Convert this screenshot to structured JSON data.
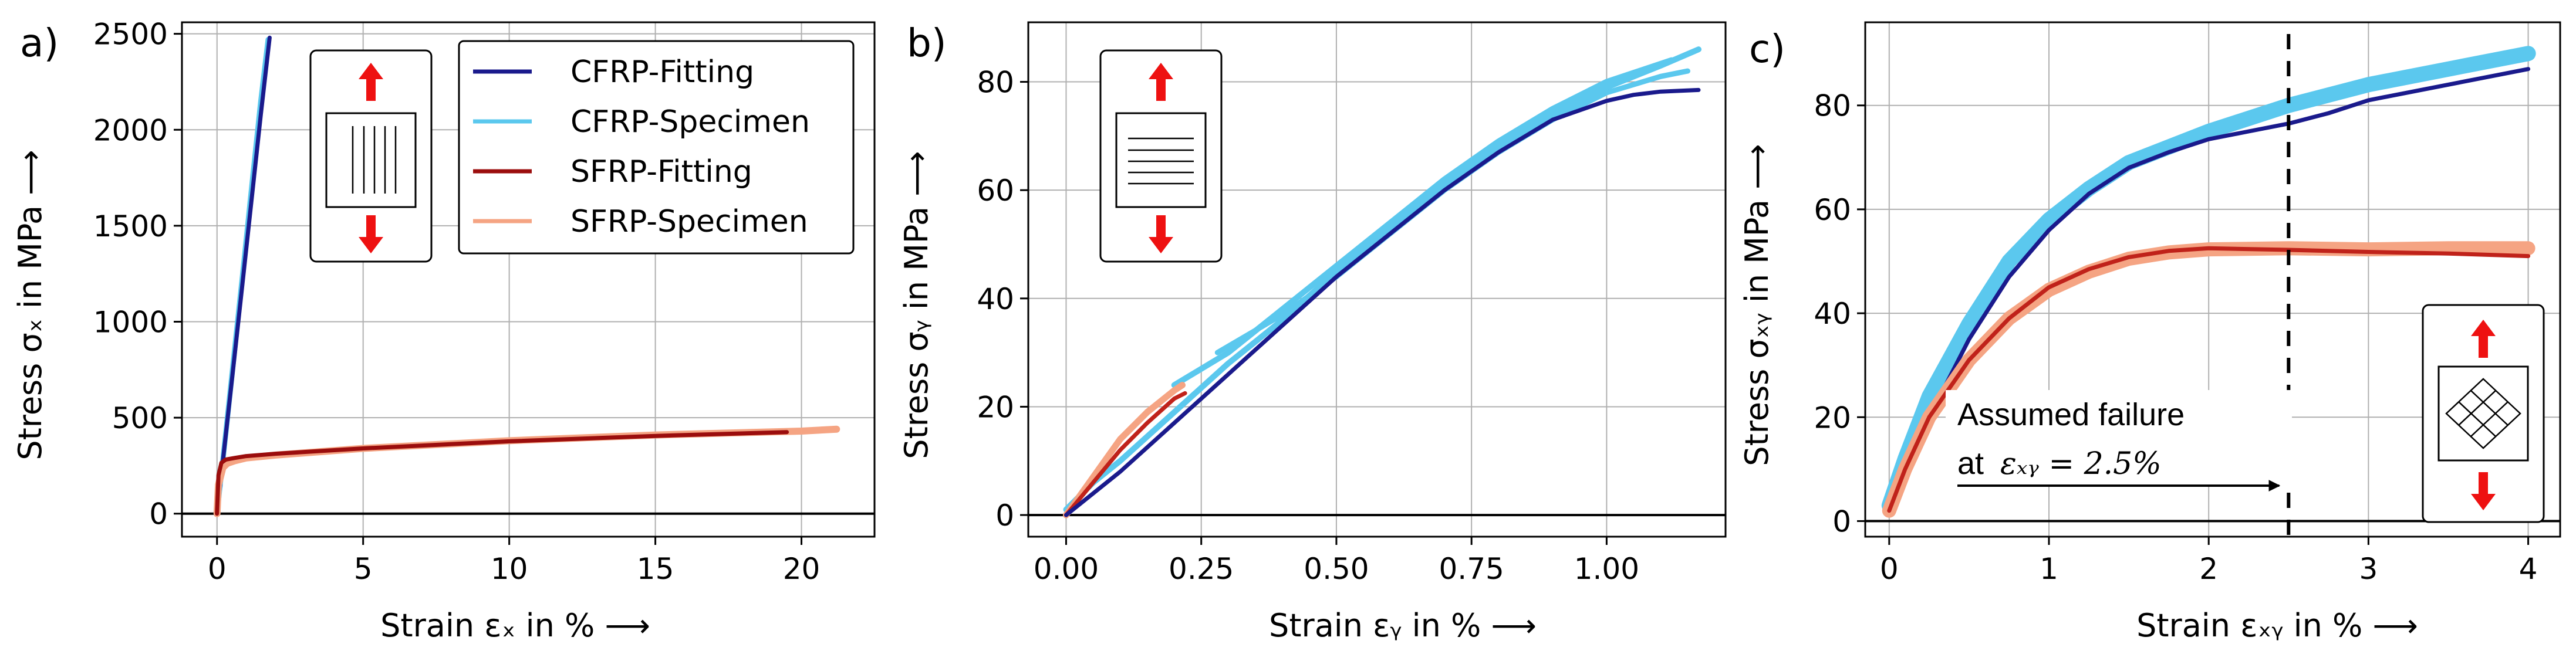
{
  "chart_data": [
    {
      "type": "line",
      "panel_label": "a)",
      "xlabel": "Strain εₓ in % ⟶",
      "ylabel": "Stress σₓ in MPa ⟶",
      "xlim": [
        -1.2,
        22.5
      ],
      "ylim": [
        -120,
        2560
      ],
      "xticks": [
        0,
        5,
        10,
        15,
        20
      ],
      "yticks": [
        0,
        500,
        1000,
        1500,
        2000,
        2500
      ],
      "grid": true,
      "legend": {
        "placement": "top-right",
        "entries": [
          "CFRP-Fitting",
          "CFRP-Specimen",
          "SFRP-Fitting",
          "SFRP-Specimen"
        ]
      },
      "inset_icon": "uniaxial-tension-fibers-vertical-icon",
      "series": [
        {
          "name": "CFRP-Specimen",
          "color": "#5bc8ee",
          "width": 9,
          "x": [
            0,
            0.3,
            0.6,
            0.9,
            1.2,
            1.5,
            1.75
          ],
          "y": [
            0,
            420,
            850,
            1280,
            1720,
            2150,
            2470
          ]
        },
        {
          "name": "CFRP-Fitting",
          "color": "#1a1a8c",
          "width": 7,
          "x": [
            0,
            0.3,
            0.6,
            0.9,
            1.2,
            1.5,
            1.8
          ],
          "y": [
            0,
            410,
            820,
            1240,
            1660,
            2080,
            2480
          ]
        },
        {
          "name": "SFRP-Specimen",
          "color": "#f5a483",
          "width": 12,
          "x": [
            0,
            0.05,
            0.2,
            0.35,
            0.6,
            1,
            2,
            5,
            10,
            15,
            20,
            21.2
          ],
          "y": [
            0,
            150,
            240,
            262,
            275,
            290,
            305,
            340,
            380,
            410,
            430,
            440
          ]
        },
        {
          "name": "SFRP-Fitting",
          "color": "#9b0d0d",
          "width": 7,
          "x": [
            0,
            0.05,
            0.15,
            0.3,
            0.6,
            1,
            2,
            5,
            10,
            15,
            19.5
          ],
          "y": [
            0,
            200,
            265,
            282,
            290,
            300,
            312,
            340,
            377,
            405,
            425
          ]
        }
      ]
    },
    {
      "type": "line",
      "panel_label": "b)",
      "xlabel": "Strain εᵧ in % ⟶",
      "ylabel": "Stress σᵧ in MPa ⟶",
      "xlim": [
        -0.07,
        1.22
      ],
      "ylim": [
        -4,
        91
      ],
      "xticks": [
        0.0,
        0.25,
        0.5,
        0.75,
        1.0
      ],
      "yticks": [
        0,
        20,
        40,
        60,
        80
      ],
      "grid": true,
      "inset_icon": "uniaxial-tension-fibers-horizontal-icon",
      "series": [
        {
          "name": "CFRP-Specimen",
          "color": "#5bc8ee",
          "width": 10,
          "x": [
            0,
            0.05,
            0.1,
            0.2,
            0.3,
            0.4,
            0.5,
            0.6,
            0.7,
            0.8,
            0.9,
            1.0,
            1.1,
            1.17
          ],
          "y": [
            1,
            6,
            10,
            19,
            28,
            36,
            45,
            53,
            61,
            68,
            74,
            79,
            83,
            86
          ]
        },
        {
          "name": "CFRP-Specimen",
          "color": "#5bc8ee",
          "width": 10,
          "x": [
            0.2,
            0.3,
            0.4,
            0.5,
            0.6,
            0.7,
            0.8,
            0.9,
            1.0,
            1.12
          ],
          "y": [
            24,
            30,
            38,
            46,
            54,
            62,
            69,
            75,
            80,
            84
          ]
        },
        {
          "name": "CFRP-Specimen",
          "color": "#5bc8ee",
          "width": 9,
          "x": [
            0.28,
            0.4,
            0.5,
            0.6,
            0.7,
            0.8,
            0.9,
            1.0,
            1.1,
            1.15
          ],
          "y": [
            30,
            37,
            44,
            52,
            60,
            67,
            73,
            78,
            81,
            82
          ]
        },
        {
          "name": "SFRP-Specimen",
          "color": "#f5a483",
          "width": 11,
          "x": [
            0,
            0.05,
            0.1,
            0.15,
            0.2,
            0.215
          ],
          "y": [
            0,
            7,
            14,
            19,
            23,
            24
          ]
        },
        {
          "name": "SFRP-Fitting",
          "color": "#c0221a",
          "width": 7,
          "x": [
            0,
            0.05,
            0.1,
            0.15,
            0.2,
            0.22
          ],
          "y": [
            0,
            6,
            12,
            17,
            21.5,
            22.5
          ]
        },
        {
          "name": "CFRP-Fitting",
          "color": "#1a1a8c",
          "width": 7,
          "x": [
            0,
            0.1,
            0.2,
            0.3,
            0.4,
            0.5,
            0.6,
            0.7,
            0.8,
            0.9,
            1.0,
            1.05,
            1.1,
            1.17
          ],
          "y": [
            0,
            8,
            17,
            26,
            35,
            44,
            52,
            60,
            67,
            73,
            76.5,
            77.6,
            78.2,
            78.5
          ]
        }
      ]
    },
    {
      "type": "line",
      "panel_label": "c)",
      "xlabel": "Strain εₓᵧ in % ⟶",
      "ylabel": "Stress σₓᵧ in MPa ⟶",
      "xlim": [
        -0.15,
        4.2
      ],
      "ylim": [
        -3,
        96
      ],
      "xticks": [
        0,
        1,
        2,
        3,
        4
      ],
      "yticks": [
        0,
        20,
        40,
        60,
        80
      ],
      "grid": true,
      "inset_icon": "shear-loading-fibers-crossed-icon",
      "annotation": {
        "text": "Assumed failure",
        "math_prefix": "at ",
        "math": "εₓᵧ = 2.5%",
        "failure_strain": 2.5
      },
      "series": [
        {
          "name": "CFRP-Specimen",
          "color": "#5bc8ee",
          "width": 26,
          "x": [
            0,
            0.1,
            0.25,
            0.5,
            0.75,
            1.0,
            1.25,
            1.5,
            1.75,
            2.0,
            2.5,
            3.0,
            3.5,
            4.0
          ],
          "y": [
            3,
            12,
            24,
            38,
            50,
            58,
            64,
            69,
            72,
            75,
            80,
            84,
            87,
            90
          ]
        },
        {
          "name": "CFRP-Fitting",
          "color": "#1a1a8c",
          "width": 7,
          "x": [
            0,
            0.1,
            0.25,
            0.5,
            0.75,
            1.0,
            1.25,
            1.5,
            1.75,
            2.0,
            2.25,
            2.5,
            2.75,
            3.0,
            3.5,
            4.0
          ],
          "y": [
            2,
            9,
            20,
            35,
            47,
            56,
            63,
            68,
            71,
            73.5,
            75,
            76.5,
            78.5,
            81,
            84,
            87
          ]
        },
        {
          "name": "SFRP-Specimen",
          "color": "#f5a483",
          "width": 24,
          "x": [
            0,
            0.1,
            0.25,
            0.5,
            0.75,
            1.0,
            1.25,
            1.5,
            1.75,
            2.0,
            2.5,
            3.0,
            3.5,
            4.0
          ],
          "y": [
            2,
            10,
            20,
            31,
            39,
            44.5,
            48,
            50.5,
            51.7,
            52.3,
            52.5,
            52.3,
            52.5,
            52.5
          ]
        },
        {
          "name": "SFRP-Fitting",
          "color": "#c0221a",
          "width": 7,
          "x": [
            0,
            0.1,
            0.25,
            0.5,
            0.75,
            1.0,
            1.25,
            1.5,
            1.75,
            2.0,
            2.5,
            3.0,
            3.5,
            4.0
          ],
          "y": [
            2,
            10,
            20,
            31,
            39,
            45,
            48.5,
            50.8,
            52,
            52.5,
            52.2,
            51.8,
            51.5,
            51
          ]
        }
      ]
    }
  ]
}
